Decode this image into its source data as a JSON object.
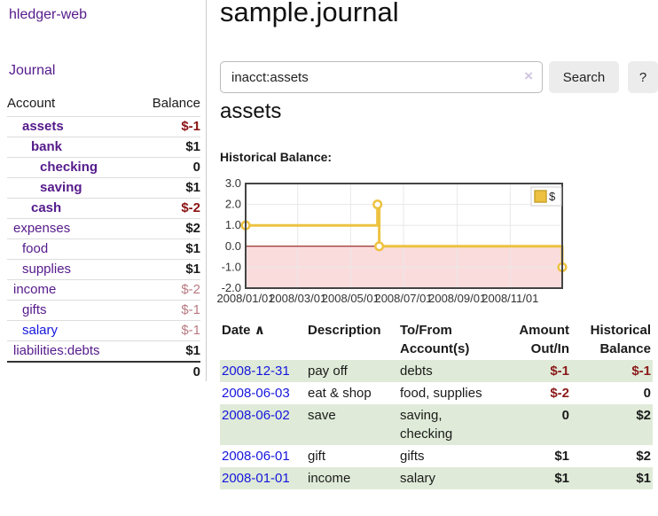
{
  "sidebar": {
    "brand": "hledger-web",
    "nav_journal": "Journal",
    "headers": {
      "account": "Account",
      "balance": "Balance"
    },
    "accounts": [
      {
        "name": "assets",
        "indent": 1,
        "matched": true,
        "balance": "$-1",
        "negative": true
      },
      {
        "name": "bank",
        "indent": 2,
        "matched": true,
        "balance": "$1",
        "negative": false
      },
      {
        "name": "checking",
        "indent": 3,
        "matched": true,
        "balance": "0",
        "negative": false
      },
      {
        "name": "saving",
        "indent": 3,
        "matched": true,
        "balance": "$1",
        "negative": false
      },
      {
        "name": "cash",
        "indent": 2,
        "matched": true,
        "balance": "$-2",
        "negative": true
      },
      {
        "name": "expenses",
        "indent": 0,
        "matched": false,
        "balance": "$2",
        "negative": false
      },
      {
        "name": "food",
        "indent": 1,
        "matched": false,
        "balance": "$1",
        "negative": false
      },
      {
        "name": "supplies",
        "indent": 1,
        "matched": false,
        "balance": "$1",
        "negative": false
      },
      {
        "name": "income",
        "indent": 0,
        "matched": false,
        "balance": "$-2",
        "negative": true
      },
      {
        "name": "gifts",
        "indent": 1,
        "matched": false,
        "balance": "$-1",
        "negative": true
      },
      {
        "name": "salary",
        "indent": 1,
        "matched": false,
        "balance": "$-1",
        "negative": true,
        "link_color": "blue"
      },
      {
        "name": "liabilities:debts",
        "indent": 0,
        "matched": false,
        "balance": "$1",
        "negative": false
      }
    ],
    "total": "0"
  },
  "main": {
    "title": "sample.journal",
    "search": {
      "value": "inacct:assets",
      "clear_icon": "×",
      "button": "Search",
      "help_button": "?"
    },
    "account_heading": "assets",
    "chart_label": "Historical Balance:"
  },
  "chart_data": {
    "type": "line",
    "step": true,
    "title": "Historical Balance:",
    "series": [
      {
        "name": "$",
        "color": "#edc240",
        "points": [
          [
            "2008-01-01",
            1
          ],
          [
            "2008-06-01",
            2
          ],
          [
            "2008-06-03",
            0
          ],
          [
            "2008-12-31",
            -1
          ]
        ]
      }
    ],
    "xrange": [
      "2008-01-01",
      "2008-12-31"
    ],
    "ylim": [
      -2,
      3
    ],
    "yticks": [
      3.0,
      2.0,
      1.0,
      0.0,
      -1.0,
      -2.0
    ],
    "ytick_labels": [
      "3.0",
      "2.0",
      "1.0",
      "0.0",
      "-1.0",
      "-2.0"
    ],
    "xticks": [
      "2008/01/01",
      "2008/03/01",
      "2008/05/01",
      "2008/07/01",
      "2008/09/01",
      "2008/11/01"
    ],
    "legend": {
      "label": "$",
      "position": "top-right"
    },
    "grid": true,
    "colors": {
      "negative_region": "#fbdcdc",
      "zero_line": "#8b0000",
      "grid": "#e8e8e8",
      "border": "#444444"
    }
  },
  "register": {
    "headers": {
      "date": "Date",
      "sort_icon": "∧",
      "description": "Description",
      "accounts": "To/From Account(s)",
      "amount": "Amount Out/In",
      "balance": "Historical Balance"
    },
    "rows": [
      {
        "date": "2008-12-31",
        "description": "pay off",
        "accounts": "debts",
        "amount": "$-1",
        "amount_negative": true,
        "balance": "$-1",
        "balance_negative": true
      },
      {
        "date": "2008-06-03",
        "description": "eat & shop",
        "accounts": "food, supplies",
        "amount": "$-2",
        "amount_negative": true,
        "balance": "0",
        "balance_negative": false
      },
      {
        "date": "2008-06-02",
        "description": "save",
        "accounts": "saving, checking",
        "amount": "0",
        "amount_negative": false,
        "balance": "$2",
        "balance_negative": false
      },
      {
        "date": "2008-06-01",
        "description": "gift",
        "accounts": "gifts",
        "amount": "$1",
        "amount_negative": false,
        "balance": "$2",
        "balance_negative": false
      },
      {
        "date": "2008-01-01",
        "description": "income",
        "accounts": "salary",
        "amount": "$1",
        "amount_negative": false,
        "balance": "$1",
        "balance_negative": false
      }
    ]
  }
}
